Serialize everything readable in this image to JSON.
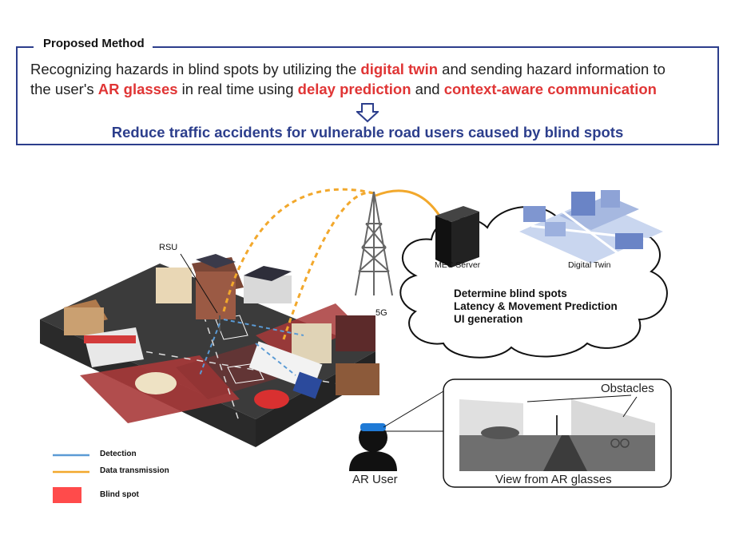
{
  "header": {
    "box_title": "Proposed Method",
    "line1": {
      "p1": "Recognizing hazards in blind spots by utilizing the ",
      "h1": "digital twin",
      "p2": " and sending hazard information to"
    },
    "line2": {
      "p1": "the user's ",
      "h1": "AR glasses",
      "p2": " in real time using ",
      "h2": "delay prediction",
      "p3": " and ",
      "h3": "context-aware communication"
    },
    "conclusion": "Reduce traffic accidents for vulnerable road users caused by blind spots"
  },
  "labels": {
    "rsu": "RSU",
    "tower": "5G",
    "mec": "MEC Server",
    "digital_twin": "Digital Twin",
    "ar_user": "AR User",
    "view": "View from AR glasses",
    "obstacles": "Obstacles"
  },
  "cloud_items": [
    "Determine blind spots",
    "Latency & Movement Prediction",
    "UI generation"
  ],
  "legend": {
    "detection": "Detection",
    "data_transmission": "Data transmission",
    "blind_spot": "Blind spot"
  },
  "colors": {
    "accent_red": "#e03535",
    "brand_blue": "#2c3e8c",
    "detection": "#5b9bd5",
    "transmission": "#f2a82c",
    "blind_spot": "#ff4b4b"
  }
}
